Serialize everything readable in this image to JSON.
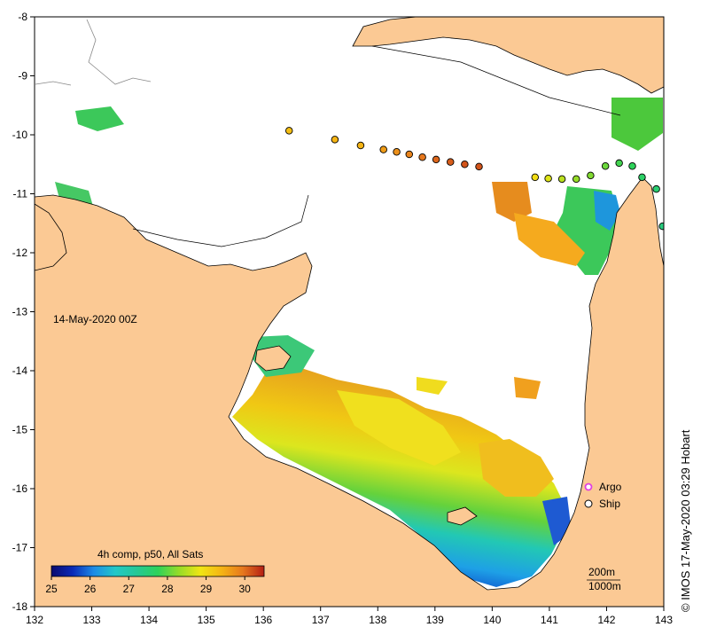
{
  "map": {
    "date_label": "14-May-2020 00Z",
    "credit": "© IMOS 17-May-2020 03:29 Hobart",
    "lon_ticks": [
      "132",
      "133",
      "134",
      "135",
      "136",
      "137",
      "138",
      "139",
      "140",
      "141",
      "142",
      "143"
    ],
    "lat_ticks": [
      "-8",
      "-9",
      "-10",
      "-11",
      "-12",
      "-13",
      "-14",
      "-15",
      "-16",
      "-17",
      "-18"
    ],
    "lon_range": [
      132,
      143
    ],
    "lat_range": [
      -18,
      -8
    ],
    "colors": {
      "land": "#fbc994",
      "ocean_nodata": "#ffffff",
      "argo_marker": "#e040e0",
      "ship_marker_stroke": "#000000"
    }
  },
  "colorbar": {
    "title": "4h comp, p50, All Sats",
    "ticks": [
      "25",
      "26",
      "27",
      "28",
      "29",
      "30"
    ],
    "range": [
      25,
      30.5
    ]
  },
  "legend": {
    "argo_label": "Argo",
    "ship_label": "Ship"
  },
  "depth_legend": {
    "contour_200": "200m",
    "contour_1000": "1000m"
  },
  "ship_track": [
    {
      "lon": 136.45,
      "lat": -9.93,
      "sst": 28.9
    },
    {
      "lon": 137.25,
      "lat": -10.08,
      "sst": 29.0
    },
    {
      "lon": 137.7,
      "lat": -10.18,
      "sst": 29.0
    },
    {
      "lon": 138.1,
      "lat": -10.25,
      "sst": 29.2
    },
    {
      "lon": 138.33,
      "lat": -10.29,
      "sst": 29.3
    },
    {
      "lon": 138.55,
      "lat": -10.33,
      "sst": 29.4
    },
    {
      "lon": 138.78,
      "lat": -10.38,
      "sst": 29.5
    },
    {
      "lon": 139.02,
      "lat": -10.42,
      "sst": 29.7
    },
    {
      "lon": 139.27,
      "lat": -10.46,
      "sst": 29.8
    },
    {
      "lon": 139.52,
      "lat": -10.5,
      "sst": 29.9
    },
    {
      "lon": 139.77,
      "lat": -10.54,
      "sst": 29.9
    },
    {
      "lon": 140.75,
      "lat": -10.72,
      "sst": 28.6
    },
    {
      "lon": 140.98,
      "lat": -10.74,
      "sst": 28.4
    },
    {
      "lon": 141.22,
      "lat": -10.75,
      "sst": 28.2
    },
    {
      "lon": 141.47,
      "lat": -10.75,
      "sst": 28.0
    },
    {
      "lon": 141.72,
      "lat": -10.69,
      "sst": 27.9
    },
    {
      "lon": 141.98,
      "lat": -10.53,
      "sst": 27.8
    },
    {
      "lon": 142.22,
      "lat": -10.48,
      "sst": 27.6
    },
    {
      "lon": 142.45,
      "lat": -10.53,
      "sst": 27.5
    },
    {
      "lon": 142.62,
      "lat": -10.72,
      "sst": 27.4
    },
    {
      "lon": 142.87,
      "lat": -10.92,
      "sst": 27.3
    },
    {
      "lon": 142.98,
      "lat": -11.55,
      "sst": 27.2
    }
  ]
}
